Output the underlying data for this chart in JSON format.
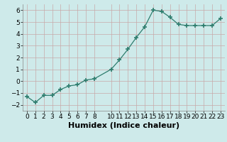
{
  "x": [
    0,
    1,
    2,
    3,
    4,
    5,
    6,
    7,
    8,
    10,
    11,
    12,
    13,
    14,
    15,
    16,
    17,
    18,
    19,
    20,
    21,
    22,
    23
  ],
  "y": [
    -1.3,
    -1.8,
    -1.2,
    -1.2,
    -0.7,
    -0.4,
    -0.3,
    0.1,
    0.2,
    1.0,
    1.8,
    2.7,
    3.7,
    4.6,
    6.0,
    5.9,
    5.4,
    4.8,
    4.7,
    4.7,
    4.7,
    4.7,
    5.3
  ],
  "xlim": [
    -0.5,
    23.5
  ],
  "ylim": [
    -2.5,
    6.5
  ],
  "yticks": [
    -2,
    -1,
    0,
    1,
    2,
    3,
    4,
    5,
    6
  ],
  "xticks": [
    0,
    1,
    2,
    3,
    4,
    5,
    6,
    7,
    8,
    10,
    11,
    12,
    13,
    14,
    15,
    16,
    17,
    18,
    19,
    20,
    21,
    22,
    23
  ],
  "xtick_labels": [
    "0",
    "1",
    "2",
    "3",
    "4",
    "5",
    "6",
    "7",
    "8",
    "10",
    "11",
    "12",
    "13",
    "14",
    "15",
    "16",
    "17",
    "18",
    "19",
    "20",
    "21",
    "22",
    "23"
  ],
  "xlabel": "Humidex (Indice chaleur)",
  "line_color": "#2e7d6e",
  "marker": "+",
  "marker_size": 4,
  "bg_color": "#ceeaea",
  "grid_color": "#b8d8d8",
  "tick_fontsize": 6.5,
  "label_fontsize": 8
}
